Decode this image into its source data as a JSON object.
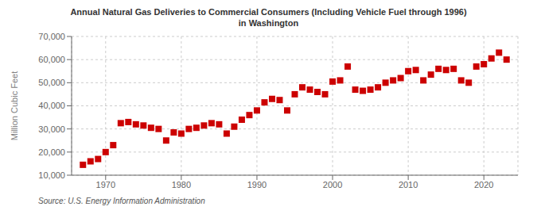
{
  "chart_data": {
    "type": "scatter",
    "title": "Annual Natural Gas Deliveries to Commercial Consumers (Including Vehicle Fuel through 1996)\nin Washington",
    "ylabel": "Million Cubic Feet",
    "annotations": [
      "Source: U.S. Energy Information Administration"
    ],
    "color": "#cc0000",
    "marker": "square",
    "grid": true,
    "x": [
      1967,
      1968,
      1969,
      1970,
      1971,
      1972,
      1973,
      1974,
      1975,
      1976,
      1977,
      1978,
      1979,
      1980,
      1981,
      1982,
      1983,
      1984,
      1985,
      1986,
      1987,
      1988,
      1989,
      1990,
      1991,
      1992,
      1993,
      1994,
      1995,
      1996,
      1997,
      1998,
      1999,
      2000,
      2001,
      2002,
      2003,
      2004,
      2005,
      2006,
      2007,
      2008,
      2009,
      2010,
      2011,
      2012,
      2013,
      2014,
      2015,
      2016,
      2017,
      2018,
      2019,
      2020,
      2021,
      2022,
      2023
    ],
    "values": [
      14500,
      16000,
      17000,
      20000,
      23000,
      32500,
      33000,
      32000,
      31500,
      30500,
      30000,
      25000,
      28500,
      28000,
      30000,
      30500,
      31500,
      32500,
      32000,
      28000,
      31000,
      34000,
      36000,
      38000,
      41500,
      43000,
      42500,
      38000,
      45000,
      48000,
      47000,
      46000,
      45000,
      50500,
      51000,
      57000,
      47000,
      46500,
      47000,
      48000,
      50000,
      51000,
      52000,
      55000,
      55500,
      51000,
      53500,
      56000,
      55500,
      56000,
      51000,
      50000,
      57000,
      58000,
      60500,
      63000,
      60000
    ],
    "xlim": [
      1965.5,
      2024.5
    ],
    "xticks": [
      1970,
      1980,
      1990,
      2000,
      2010,
      2020
    ],
    "ylim": [
      10000,
      70000
    ],
    "yticks": [
      {
        "value": 10000,
        "label": "10,000"
      },
      {
        "value": 20000,
        "label": "20,000"
      },
      {
        "value": 30000,
        "label": "30,000"
      },
      {
        "value": 40000,
        "label": "40,000"
      },
      {
        "value": 50000,
        "label": "50,000"
      },
      {
        "value": 60000,
        "label": "60,000"
      },
      {
        "value": 70000,
        "label": "70,000"
      }
    ]
  }
}
